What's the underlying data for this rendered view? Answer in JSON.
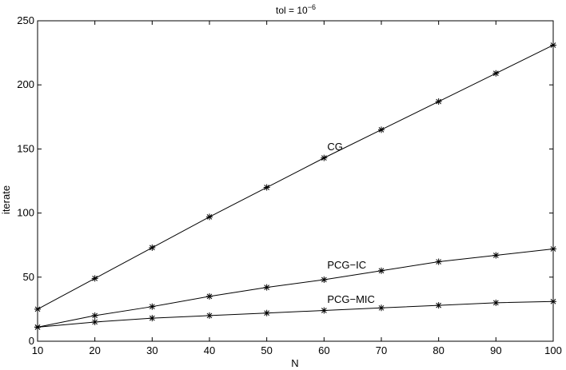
{
  "chart_data": {
    "type": "line",
    "title": "tol = 10",
    "title_exponent": "−6",
    "xlabel": "N",
    "ylabel": "iterate",
    "xlim": [
      10,
      100
    ],
    "ylim": [
      0,
      250
    ],
    "x_ticks": [
      10,
      20,
      30,
      40,
      50,
      60,
      70,
      80,
      90,
      100
    ],
    "y_ticks": [
      0,
      50,
      100,
      150,
      200,
      250
    ],
    "grid": false,
    "legend": "none",
    "marker": "asterisk",
    "line_color": "#000000",
    "x": [
      10,
      20,
      30,
      40,
      50,
      60,
      70,
      80,
      90,
      100
    ],
    "series": [
      {
        "name": "CG",
        "values": [
          25,
          49,
          73,
          97,
          120,
          143,
          165,
          187,
          209,
          231
        ],
        "label_at": [
          60,
          152
        ]
      },
      {
        "name": "PCG−IC",
        "values": [
          11,
          20,
          27,
          35,
          42,
          48,
          55,
          62,
          67,
          72
        ],
        "label_at": [
          60,
          60
        ]
      },
      {
        "name": "PCG−MIC",
        "values": [
          11,
          15,
          18,
          20,
          22,
          24,
          26,
          28,
          30,
          31
        ],
        "label_at": [
          60,
          33
        ]
      }
    ]
  }
}
